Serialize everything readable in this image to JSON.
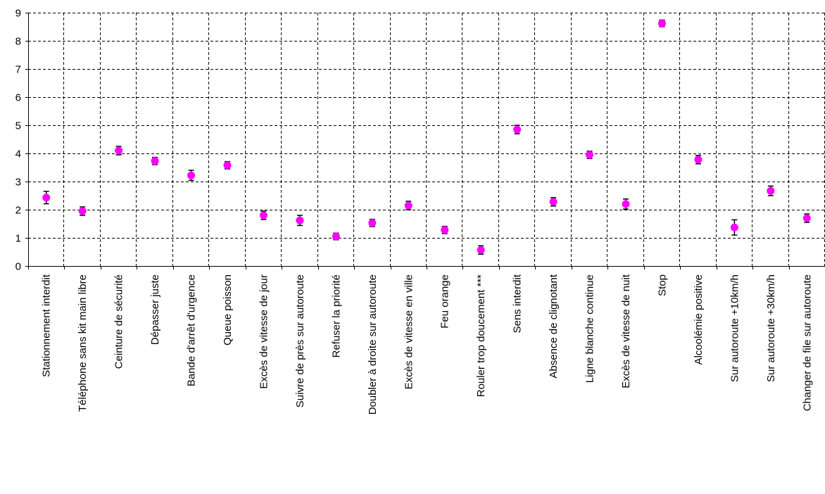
{
  "chart_data": {
    "type": "scatter",
    "title": "",
    "xlabel": "",
    "ylabel": "",
    "ylim": [
      0,
      9
    ],
    "yticks": [
      0,
      1,
      2,
      3,
      4,
      5,
      6,
      7,
      8,
      9
    ],
    "grid": true,
    "legend": "none",
    "marker_color": "#ff00ff",
    "errorbar_color": "#000000",
    "categories": [
      "Stationnement interdit",
      "Téléphone sans kit main libre",
      "Ceinture de sécurité",
      "Dépasser juste",
      "Bande d'arrêt d'urgence",
      "Queue poisson",
      "Excès de vitesse de jour",
      "Suivre de près sur autoroute",
      "Refuser la priorité",
      "Doubler à droite sur autoroute",
      "Excès de vitesse en ville",
      "Feu orange",
      "Rouler trop doucement ***",
      "Sens interdit",
      "Absence de clignotant",
      "Ligne blanche continue",
      "Excès de vitesse de nuit",
      "Stop",
      "Alcoolémie positive",
      "Sur autoroute +10km/h",
      "Sur autoroute +30km/h",
      "Changer de file sur autoroute"
    ],
    "series": [
      {
        "values": [
          2.43,
          1.95,
          4.1,
          3.73,
          3.22,
          3.58,
          1.8,
          1.62,
          1.05,
          1.53,
          2.15,
          1.28,
          0.57,
          4.85,
          2.28,
          3.95,
          2.2,
          8.62,
          3.78,
          1.37,
          2.67,
          1.7
        ],
        "error": [
          0.22,
          0.15,
          0.15,
          0.13,
          0.18,
          0.13,
          0.15,
          0.18,
          0.12,
          0.13,
          0.15,
          0.13,
          0.15,
          0.15,
          0.15,
          0.13,
          0.18,
          0.12,
          0.15,
          0.27,
          0.17,
          0.15
        ]
      }
    ]
  }
}
